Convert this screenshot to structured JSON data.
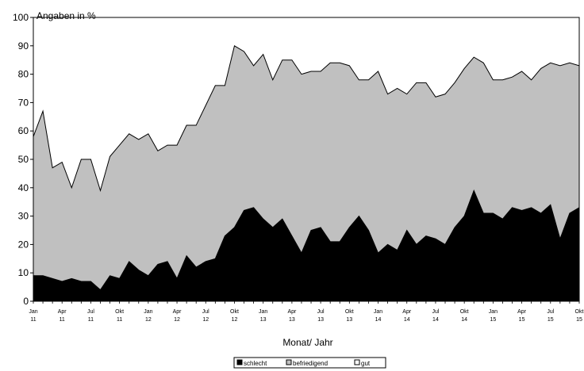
{
  "chart_data": {
    "type": "area",
    "stacked": true,
    "ylabel": "Angaben in %",
    "xlabel": "Monat/ Jahr",
    "ylim": [
      0,
      100
    ],
    "yticks": [
      0,
      10,
      20,
      30,
      40,
      50,
      60,
      70,
      80,
      90,
      100
    ],
    "grid": false,
    "legend_position": "bottom",
    "x_ticks": [
      [
        "Jan",
        "11"
      ],
      [
        "Apr",
        "11"
      ],
      [
        "Jul",
        "11"
      ],
      [
        "Okt",
        "11"
      ],
      [
        "Jan",
        "12"
      ],
      [
        "Apr",
        "12"
      ],
      [
        "Jul",
        "12"
      ],
      [
        "Okt",
        "12"
      ],
      [
        "Jan",
        "13"
      ],
      [
        "Apr",
        "13"
      ],
      [
        "Jul",
        "13"
      ],
      [
        "Okt",
        "13"
      ],
      [
        "Jan",
        "14"
      ],
      [
        "Apr",
        "14"
      ],
      [
        "Jul",
        "14"
      ],
      [
        "Okt",
        "14"
      ],
      [
        "Jan",
        "15"
      ],
      [
        "Apr",
        "15"
      ],
      [
        "Jul",
        "15"
      ],
      [
        "Okt",
        "15"
      ]
    ],
    "x_count": 58,
    "series": [
      {
        "name": "schlecht",
        "color": "#000000",
        "top": [
          9,
          9,
          8,
          7,
          8,
          7,
          7,
          4,
          9,
          8,
          14,
          11,
          9,
          13,
          14,
          8,
          16,
          12,
          14,
          15,
          23,
          26,
          32,
          33,
          29,
          26,
          29,
          23,
          17,
          25,
          26,
          21,
          21,
          26,
          30,
          25,
          17,
          20,
          18,
          25,
          20,
          23,
          22,
          20,
          26,
          30,
          39,
          31,
          31,
          29,
          33,
          32,
          33,
          31,
          34,
          22,
          31,
          33
        ]
      },
      {
        "name": "befriedigend",
        "color": "#c0c0c0",
        "top": [
          58,
          67,
          47,
          49,
          40,
          50,
          50,
          39,
          51,
          55,
          59,
          57,
          59,
          53,
          55,
          55,
          62,
          62,
          69,
          76,
          76,
          90,
          88,
          83,
          87,
          78,
          85,
          85,
          80,
          81,
          81,
          84,
          84,
          83,
          78,
          78,
          81,
          73,
          75,
          73,
          77,
          77,
          72,
          73,
          77,
          82,
          86,
          84,
          78,
          78,
          79,
          81,
          78,
          82,
          84,
          83,
          84,
          83
        ]
      },
      {
        "name": "gut",
        "color": "#ffffff",
        "top": []
      }
    ]
  }
}
